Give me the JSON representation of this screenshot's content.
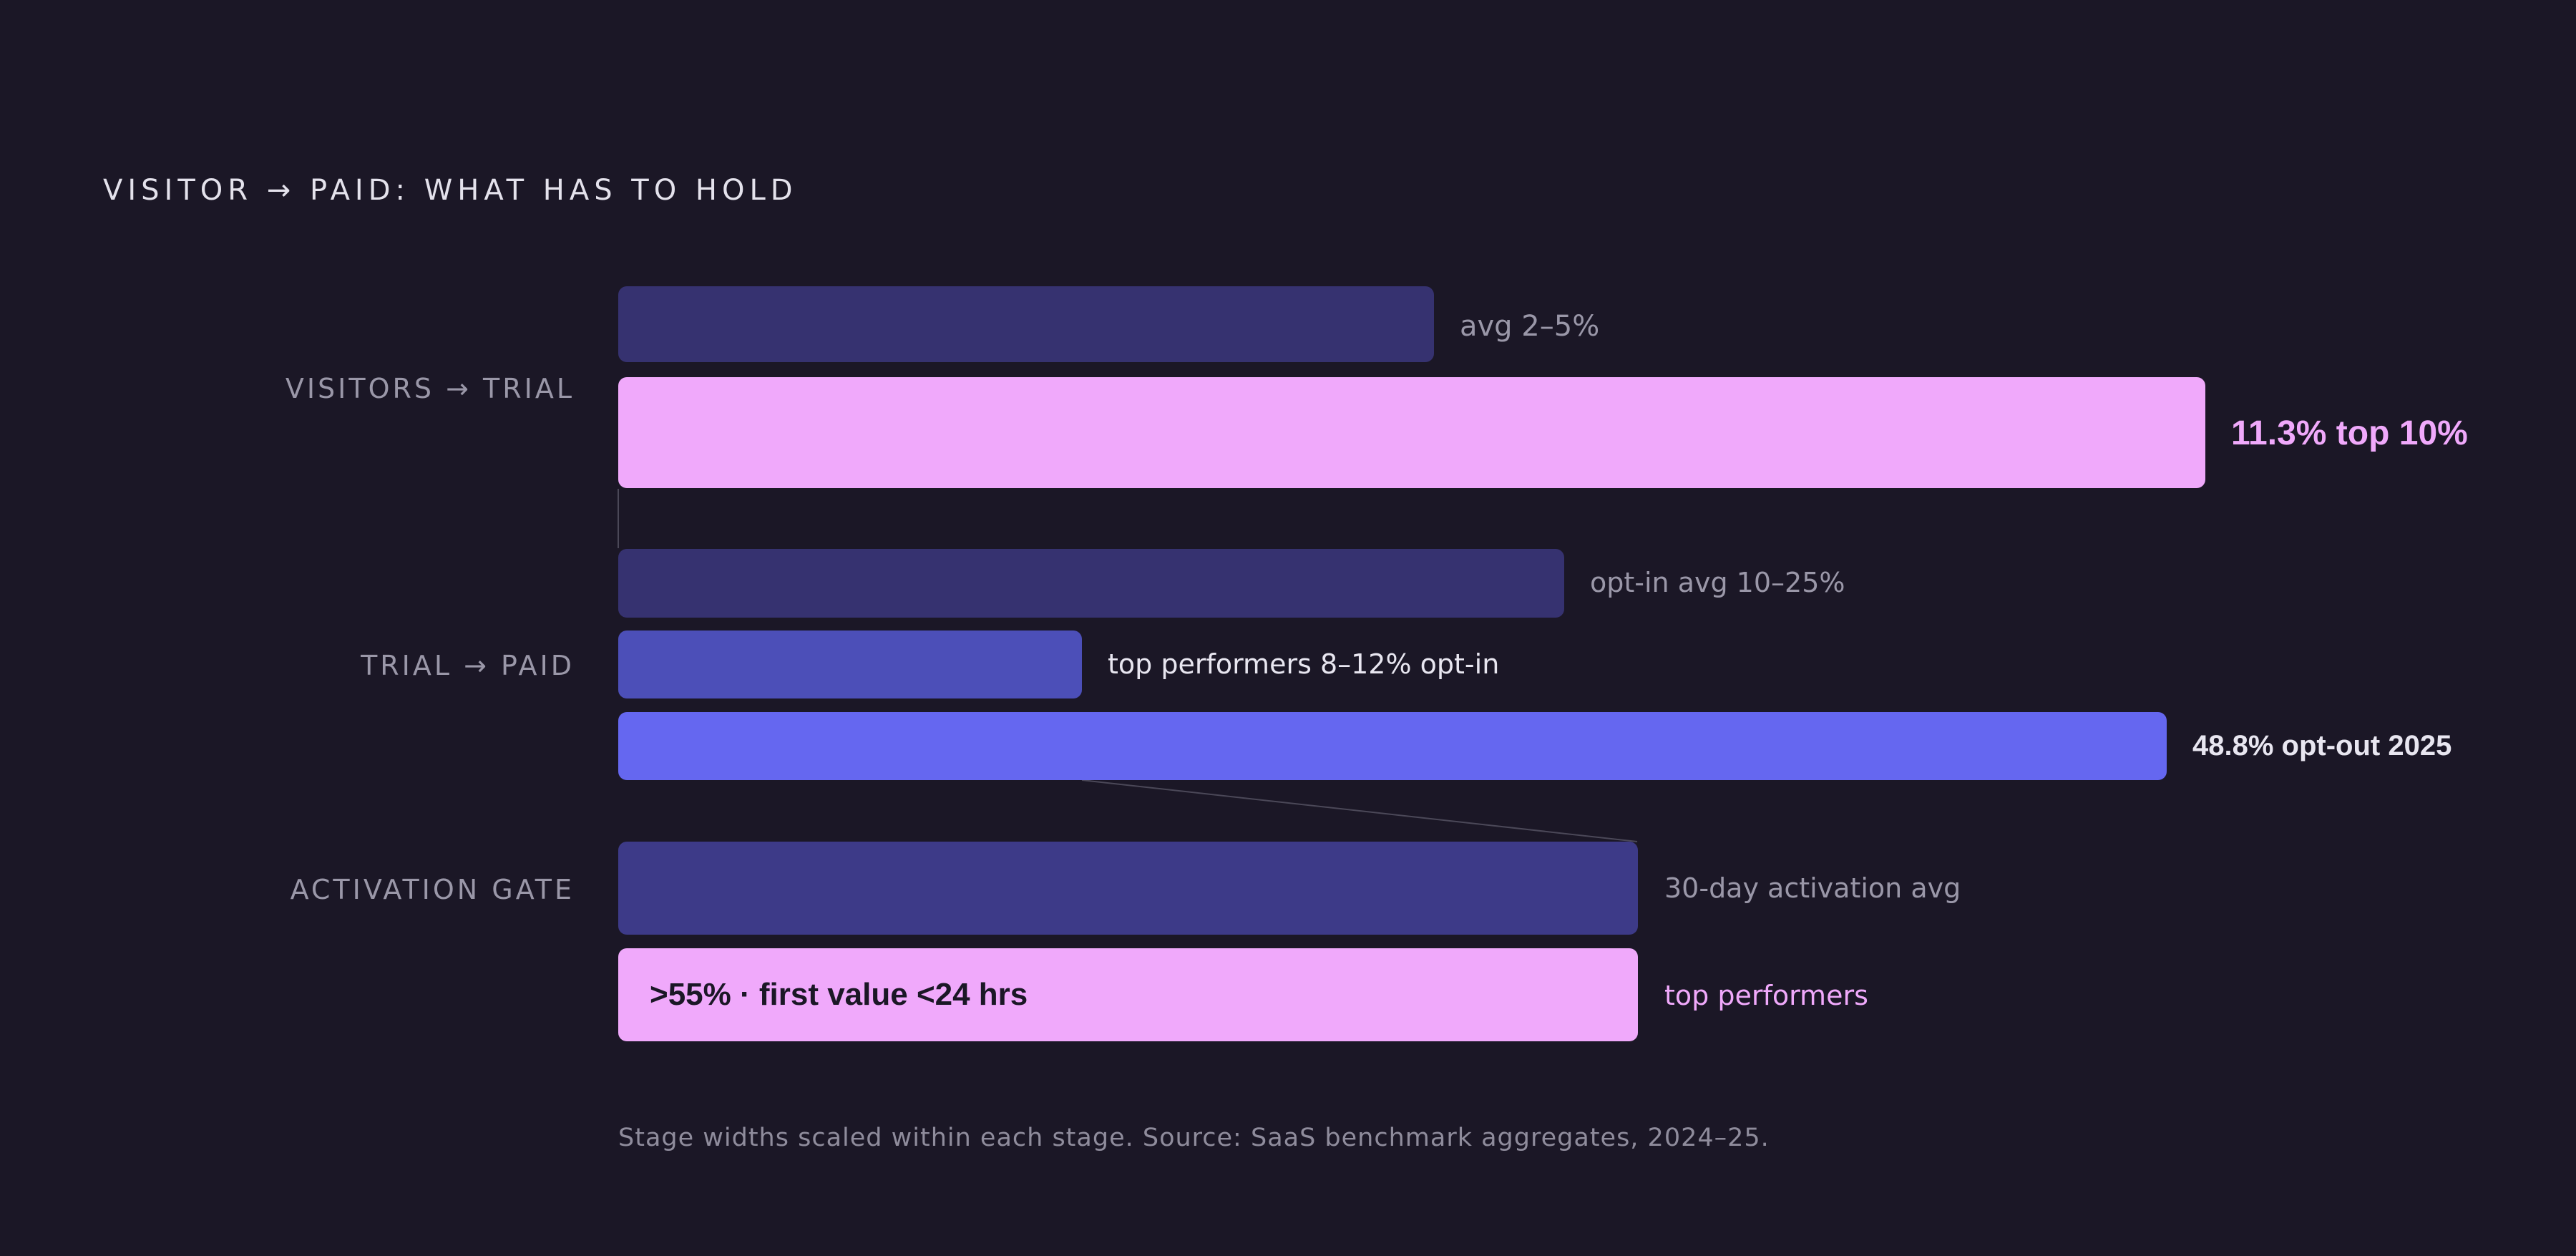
{
  "title": "VISITOR → PAID: WHAT HAS TO HOLD",
  "source": "Stage widths scaled within each stage. Source: SaaS benchmark aggregates, 2024–25.",
  "colors": {
    "background": "#1b1726",
    "avg_bar": "#363270",
    "top_bar_pink": "#f0a9fb",
    "top_performers_bar": "#4c4fb8",
    "opt_out_bar": "#6567f0",
    "activation_avg_bar": "#3d3a88",
    "label_muted": "#9a97a8",
    "label_light": "#e8e6f0",
    "label_pink": "#f0a9fb"
  },
  "chart_data": {
    "type": "bar",
    "orientation": "horizontal",
    "title": "VISITOR → PAID: WHAT HAS TO HOLD",
    "note": "Stage widths scaled within each stage. Source: SaaS benchmark aggregates, 2024–25.",
    "stages": [
      {
        "name": "VISITORS → TRIAL",
        "bars": [
          {
            "label": "avg 2–5%",
            "scale": 0.514,
            "style": "avg"
          },
          {
            "label": "11.3% top 10%",
            "scale": 1.0,
            "style": "highlight"
          }
        ]
      },
      {
        "name": "TRIAL → PAID",
        "bars": [
          {
            "label": "opt-in avg 10–25%",
            "scale": 0.611,
            "style": "avg"
          },
          {
            "label": "top performers 8–12% opt-in",
            "scale": 0.3,
            "style": "top"
          },
          {
            "label": "48.8% opt-out 2025",
            "scale": 1.0,
            "style": "opt-out"
          }
        ]
      },
      {
        "name": "ACTIVATION GATE",
        "bars": [
          {
            "label": "30-day activation avg",
            "scale": 1.0,
            "style": "avg"
          },
          {
            "label": "top performers",
            "inner_label": ">55% · first value <24 hrs",
            "scale": 1.0,
            "style": "highlight"
          }
        ]
      }
    ]
  }
}
